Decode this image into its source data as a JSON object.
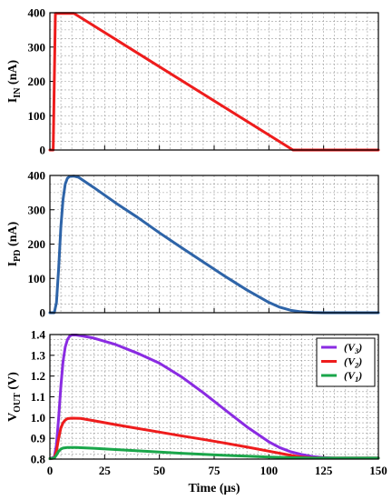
{
  "chart_data": [
    {
      "type": "line",
      "ylabel_main": "I",
      "ylabel_sub": "IN",
      "ylabel_unit": " (nA)",
      "xlim": [
        0,
        150
      ],
      "ylim": [
        0,
        400
      ],
      "yticks": [
        0,
        100,
        200,
        300,
        400
      ],
      "grid": true,
      "series": [
        {
          "color": "#ee1c1c",
          "points": [
            [
              0,
              0
            ],
            [
              1.5,
              0
            ],
            [
              2.5,
              398
            ],
            [
              11,
              398
            ],
            [
              111,
              0
            ],
            [
              150,
              0
            ]
          ]
        }
      ]
    },
    {
      "type": "line",
      "ylabel_main": "I",
      "ylabel_sub": "PD",
      "ylabel_unit": " (nA)",
      "xlim": [
        0,
        150
      ],
      "ylim": [
        0,
        400
      ],
      "yticks": [
        0,
        100,
        200,
        300,
        400
      ],
      "grid": true,
      "series": [
        {
          "color": "#2e64a8",
          "points": [
            [
              0,
              0
            ],
            [
              2,
              0
            ],
            [
              3,
              30
            ],
            [
              4,
              130
            ],
            [
              5,
              250
            ],
            [
              6,
              330
            ],
            [
              7,
              375
            ],
            [
              8,
              392
            ],
            [
              9,
              397
            ],
            [
              11,
              398
            ],
            [
              13,
              395
            ],
            [
              16,
              382
            ],
            [
              20,
              365
            ],
            [
              30,
              320
            ],
            [
              40,
              278
            ],
            [
              50,
              233
            ],
            [
              60,
              190
            ],
            [
              70,
              148
            ],
            [
              80,
              106
            ],
            [
              90,
              66
            ],
            [
              100,
              30
            ],
            [
              105,
              16
            ],
            [
              110,
              7
            ],
            [
              115,
              2.5
            ],
            [
              120,
              0.7
            ],
            [
              125,
              0
            ],
            [
              150,
              0
            ]
          ]
        }
      ]
    },
    {
      "type": "line",
      "ylabel_main": "V",
      "ylabel_sub": "OUT",
      "ylabel_unit": " (V)",
      "xlabel": "Time (μs)",
      "xlim": [
        0,
        150
      ],
      "ylim": [
        0.8,
        1.4
      ],
      "yticks": [
        0.8,
        0.9,
        1.0,
        1.1,
        1.2,
        1.3,
        1.4
      ],
      "ytick_labels": [
        "0.8",
        "0.9",
        "1.0",
        "1.1",
        "1.2",
        "1.3",
        "1.4"
      ],
      "xticks": [
        0,
        25,
        50,
        75,
        100,
        125,
        150
      ],
      "grid": true,
      "legend_position": "top-right",
      "series": [
        {
          "name": "(V3)",
          "legend_main": "(V",
          "legend_sub": "3",
          "legend_end": ")",
          "color": "#8a2be2",
          "points": [
            [
              0,
              0.802
            ],
            [
              2,
              0.81
            ],
            [
              3,
              0.87
            ],
            [
              4,
              1.0
            ],
            [
              5,
              1.15
            ],
            [
              6,
              1.27
            ],
            [
              7,
              1.34
            ],
            [
              8,
              1.375
            ],
            [
              9,
              1.392
            ],
            [
              10,
              1.398
            ],
            [
              12,
              1.398
            ],
            [
              15,
              1.393
            ],
            [
              20,
              1.383
            ],
            [
              30,
              1.352
            ],
            [
              40,
              1.31
            ],
            [
              50,
              1.262
            ],
            [
              60,
              1.197
            ],
            [
              70,
              1.12
            ],
            [
              80,
              1.037
            ],
            [
              90,
              0.955
            ],
            [
              100,
              0.883
            ],
            [
              105,
              0.855
            ],
            [
              110,
              0.835
            ],
            [
              115,
              0.822
            ],
            [
              120,
              0.812
            ],
            [
              125,
              0.807
            ],
            [
              130,
              0.805
            ],
            [
              150,
              0.805
            ]
          ]
        },
        {
          "name": "(V2)",
          "legend_main": "(V",
          "legend_sub": "2",
          "legend_end": ")",
          "color": "#ee1c1c",
          "points": [
            [
              0,
              0.802
            ],
            [
              2,
              0.805
            ],
            [
              3,
              0.84
            ],
            [
              4,
              0.9
            ],
            [
              5,
              0.95
            ],
            [
              6,
              0.975
            ],
            [
              7,
              0.988
            ],
            [
              8,
              0.995
            ],
            [
              10,
              0.997
            ],
            [
              14,
              0.996
            ],
            [
              20,
              0.985
            ],
            [
              30,
              0.966
            ],
            [
              40,
              0.948
            ],
            [
              50,
              0.93
            ],
            [
              60,
              0.912
            ],
            [
              70,
              0.895
            ],
            [
              80,
              0.877
            ],
            [
              90,
              0.858
            ],
            [
              100,
              0.838
            ],
            [
              110,
              0.818
            ],
            [
              115,
              0.81
            ],
            [
              120,
              0.806
            ],
            [
              125,
              0.805
            ],
            [
              150,
              0.805
            ]
          ]
        },
        {
          "name": "(V1)",
          "legend_main": "(V",
          "legend_sub": "1",
          "legend_end": ")",
          "color": "#1aa64a",
          "points": [
            [
              0,
              0.802
            ],
            [
              2,
              0.805
            ],
            [
              3,
              0.82
            ],
            [
              4,
              0.838
            ],
            [
              5,
              0.848
            ],
            [
              6,
              0.853
            ],
            [
              8,
              0.856
            ],
            [
              12,
              0.856
            ],
            [
              20,
              0.852
            ],
            [
              30,
              0.846
            ],
            [
              40,
              0.84
            ],
            [
              50,
              0.834
            ],
            [
              60,
              0.828
            ],
            [
              70,
              0.823
            ],
            [
              80,
              0.818
            ],
            [
              90,
              0.814
            ],
            [
              100,
              0.81
            ],
            [
              110,
              0.807
            ],
            [
              120,
              0.805
            ],
            [
              150,
              0.805
            ]
          ]
        }
      ]
    }
  ]
}
